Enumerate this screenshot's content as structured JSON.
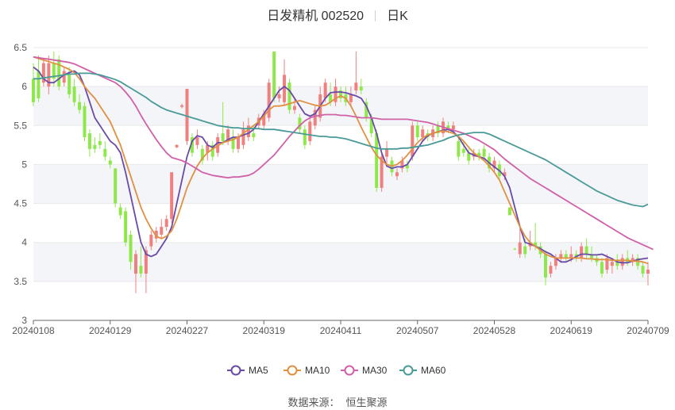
{
  "title": {
    "name": "日发精机 002520",
    "period": "日K"
  },
  "source": {
    "label": "数据来源：",
    "value": "恒生聚源"
  },
  "colors": {
    "up": "#f08080",
    "down": "#8fe84a",
    "MA5": "#6a4aa8",
    "MA10": "#e09040",
    "MA30": "#d060a8",
    "MA60": "#4a9a98",
    "grid": "#e8e8e8",
    "band": "#f4f5f9",
    "axis": "#555555"
  },
  "chart_data": {
    "type": "candlestick",
    "ylim": [
      3,
      6.5
    ],
    "yticks": [
      "3",
      "3.5",
      "4",
      "4.5",
      "5",
      "5.5",
      "6",
      "6.5"
    ],
    "xticks": [
      "20240108",
      "20240129",
      "20240227",
      "20240319",
      "20240411",
      "20240507",
      "20240528",
      "20240619",
      "20240709"
    ],
    "xtick_index": [
      0,
      15,
      30,
      45,
      60,
      75,
      90,
      105,
      120
    ],
    "candles": [
      {
        "o": 6.1,
        "c": 5.8,
        "h": 6.3,
        "l": 5.75
      },
      {
        "o": 6.2,
        "c": 5.85,
        "h": 6.4,
        "l": 5.8
      },
      {
        "o": 6.05,
        "c": 6.3,
        "h": 6.35,
        "l": 6.0
      },
      {
        "o": 6.0,
        "c": 6.3,
        "h": 6.4,
        "l": 5.9
      },
      {
        "o": 6.3,
        "c": 6.1,
        "h": 6.45,
        "l": 6.0
      },
      {
        "o": 6.35,
        "c": 6.0,
        "h": 6.4,
        "l": 5.95
      },
      {
        "o": 6.05,
        "c": 6.2,
        "h": 6.25,
        "l": 6.0
      },
      {
        "o": 6.15,
        "c": 5.9,
        "h": 6.25,
        "l": 5.85
      },
      {
        "o": 6.0,
        "c": 5.8,
        "h": 6.1,
        "l": 5.75
      },
      {
        "o": 5.8,
        "c": 5.7,
        "h": 5.9,
        "l": 5.65
      },
      {
        "o": 5.75,
        "c": 5.35,
        "h": 5.8,
        "l": 5.3
      },
      {
        "o": 5.4,
        "c": 5.2,
        "h": 5.45,
        "l": 5.1
      },
      {
        "o": 5.25,
        "c": 5.2,
        "h": 5.35,
        "l": 5.15
      },
      {
        "o": 5.3,
        "c": 5.25,
        "h": 5.4,
        "l": 5.2
      },
      {
        "o": 5.2,
        "c": 5.1,
        "h": 5.3,
        "l": 5.05
      },
      {
        "o": 5.05,
        "c": 5.0,
        "h": 5.1,
        "l": 4.95
      },
      {
        "o": 4.95,
        "c": 4.5,
        "h": 4.95,
        "l": 4.45
      },
      {
        "o": 4.45,
        "c": 4.35,
        "h": 4.5,
        "l": 4.3
      },
      {
        "o": 4.4,
        "c": 4.0,
        "h": 4.45,
        "l": 3.95
      },
      {
        "o": 4.1,
        "c": 3.75,
        "h": 4.15,
        "l": 3.65
      },
      {
        "o": 3.6,
        "c": 3.85,
        "h": 3.9,
        "l": 3.35
      },
      {
        "o": 3.7,
        "c": 3.6,
        "h": 3.95,
        "l": 3.55
      },
      {
        "o": 3.6,
        "c": 3.9,
        "h": 3.95,
        "l": 3.35
      },
      {
        "o": 3.95,
        "c": 4.1,
        "h": 4.15,
        "l": 3.9
      },
      {
        "o": 4.05,
        "c": 4.15,
        "h": 4.2,
        "l": 4.0
      },
      {
        "o": 4.1,
        "c": 4.2,
        "h": 4.3,
        "l": 4.05
      },
      {
        "o": 4.2,
        "c": 4.3,
        "h": 4.35,
        "l": 4.15
      },
      {
        "o": 4.3,
        "c": 4.9,
        "h": 4.9,
        "l": 4.25
      },
      {
        "o": 5.22,
        "c": 5.25,
        "h": 5.26,
        "l": 5.21
      },
      {
        "o": 5.74,
        "c": 5.76,
        "h": 5.78,
        "l": 5.72
      },
      {
        "o": 5.3,
        "c": 5.97,
        "h": 5.97,
        "l": 5.25
      },
      {
        "o": 5.35,
        "c": 5.15,
        "h": 5.4,
        "l": 5.1
      },
      {
        "o": 5.25,
        "c": 5.35,
        "h": 5.45,
        "l": 5.2
      },
      {
        "o": 5.2,
        "c": 5.05,
        "h": 5.25,
        "l": 5.0
      },
      {
        "o": 5.15,
        "c": 5.25,
        "h": 5.3,
        "l": 5.05
      },
      {
        "o": 5.25,
        "c": 5.1,
        "h": 5.3,
        "l": 5.05
      },
      {
        "o": 5.15,
        "c": 5.35,
        "h": 5.4,
        "l": 5.1
      },
      {
        "o": 5.4,
        "c": 5.3,
        "h": 5.8,
        "l": 5.25
      },
      {
        "o": 5.3,
        "c": 5.45,
        "h": 5.5,
        "l": 5.25
      },
      {
        "o": 5.35,
        "c": 5.2,
        "h": 5.45,
        "l": 5.15
      },
      {
        "o": 5.2,
        "c": 5.35,
        "h": 5.4,
        "l": 5.15
      },
      {
        "o": 5.25,
        "c": 5.45,
        "h": 5.55,
        "l": 5.2
      },
      {
        "o": 5.35,
        "c": 5.5,
        "h": 5.6,
        "l": 5.3
      },
      {
        "o": 5.4,
        "c": 5.35,
        "h": 5.5,
        "l": 5.3
      },
      {
        "o": 5.5,
        "c": 5.6,
        "h": 5.65,
        "l": 5.45
      },
      {
        "o": 5.5,
        "c": 5.65,
        "h": 5.7,
        "l": 5.45
      },
      {
        "o": 5.6,
        "c": 6.05,
        "h": 6.1,
        "l": 5.55
      },
      {
        "o": 6.45,
        "c": 5.85,
        "h": 6.45,
        "l": 5.8
      },
      {
        "o": 5.85,
        "c": 5.9,
        "h": 6.0,
        "l": 5.8
      },
      {
        "o": 5.8,
        "c": 6.15,
        "h": 6.35,
        "l": 5.75
      },
      {
        "o": 6.05,
        "c": 5.7,
        "h": 6.1,
        "l": 5.65
      },
      {
        "o": 5.7,
        "c": 5.75,
        "h": 5.85,
        "l": 5.65
      },
      {
        "o": 5.6,
        "c": 5.45,
        "h": 5.65,
        "l": 5.4
      },
      {
        "o": 5.45,
        "c": 5.25,
        "h": 5.5,
        "l": 5.2
      },
      {
        "o": 5.3,
        "c": 5.55,
        "h": 5.6,
        "l": 5.25
      },
      {
        "o": 5.5,
        "c": 5.7,
        "h": 5.75,
        "l": 5.45
      },
      {
        "o": 5.6,
        "c": 5.9,
        "h": 6.0,
        "l": 5.55
      },
      {
        "o": 5.85,
        "c": 6.05,
        "h": 6.1,
        "l": 5.8
      },
      {
        "o": 5.9,
        "c": 5.8,
        "h": 6.05,
        "l": 5.75
      },
      {
        "o": 5.8,
        "c": 6.0,
        "h": 6.1,
        "l": 5.75
      },
      {
        "o": 5.95,
        "c": 5.85,
        "h": 6.0,
        "l": 5.8
      },
      {
        "o": 5.9,
        "c": 5.8,
        "h": 6.0,
        "l": 5.75
      },
      {
        "o": 5.8,
        "c": 5.9,
        "h": 6.0,
        "l": 5.75
      },
      {
        "o": 5.95,
        "c": 6.05,
        "h": 6.45,
        "l": 5.9
      },
      {
        "o": 6.0,
        "c": 5.95,
        "h": 6.1,
        "l": 5.9
      },
      {
        "o": 5.8,
        "c": 5.6,
        "h": 5.85,
        "l": 5.55
      },
      {
        "o": 5.6,
        "c": 5.4,
        "h": 5.65,
        "l": 5.35
      },
      {
        "o": 5.4,
        "c": 4.7,
        "h": 5.45,
        "l": 4.65
      },
      {
        "o": 4.7,
        "c": 5.1,
        "h": 5.15,
        "l": 4.65
      },
      {
        "o": 5.1,
        "c": 5.2,
        "h": 5.3,
        "l": 5.0
      },
      {
        "o": 5.05,
        "c": 4.9,
        "h": 5.1,
        "l": 4.85
      },
      {
        "o": 4.85,
        "c": 4.9,
        "h": 4.95,
        "l": 4.8
      },
      {
        "o": 4.95,
        "c": 5.05,
        "h": 5.1,
        "l": 4.9
      },
      {
        "o": 5.0,
        "c": 4.95,
        "h": 5.05,
        "l": 4.9
      },
      {
        "o": 5.1,
        "c": 5.5,
        "h": 5.55,
        "l": 5.05
      },
      {
        "o": 5.5,
        "c": 5.35,
        "h": 5.55,
        "l": 5.3
      },
      {
        "o": 5.35,
        "c": 5.45,
        "h": 5.5,
        "l": 5.3
      },
      {
        "o": 5.4,
        "c": 5.35,
        "h": 5.45,
        "l": 5.3
      },
      {
        "o": 5.35,
        "c": 5.45,
        "h": 5.5,
        "l": 5.3
      },
      {
        "o": 5.5,
        "c": 5.4,
        "h": 5.55,
        "l": 5.35
      },
      {
        "o": 5.4,
        "c": 5.55,
        "h": 5.6,
        "l": 5.35
      },
      {
        "o": 5.5,
        "c": 5.45,
        "h": 5.55,
        "l": 5.4
      },
      {
        "o": 5.45,
        "c": 5.5,
        "h": 5.55,
        "l": 5.4
      },
      {
        "o": 5.3,
        "c": 5.1,
        "h": 5.35,
        "l": 5.05
      },
      {
        "o": 5.2,
        "c": 5.15,
        "h": 5.3,
        "l": 5.1
      },
      {
        "o": 5.15,
        "c": 5.05,
        "h": 5.2,
        "l": 5.0
      },
      {
        "o": 5.1,
        "c": 5.15,
        "h": 5.2,
        "l": 5.05
      },
      {
        "o": 5.15,
        "c": 5.1,
        "h": 5.2,
        "l": 5.05
      },
      {
        "o": 5.2,
        "c": 5.1,
        "h": 5.25,
        "l": 5.05
      },
      {
        "o": 5.1,
        "c": 4.95,
        "h": 5.15,
        "l": 4.9
      },
      {
        "o": 4.95,
        "c": 5.05,
        "h": 5.1,
        "l": 4.9
      },
      {
        "o": 5.0,
        "c": 4.85,
        "h": 5.05,
        "l": 4.8
      },
      {
        "o": 4.85,
        "c": 4.9,
        "h": 4.95,
        "l": 4.8
      },
      {
        "o": 4.45,
        "c": 4.35,
        "h": 4.45,
        "l": 4.35
      },
      {
        "o": 3.92,
        "c": 3.91,
        "h": 3.93,
        "l": 3.9
      },
      {
        "o": 3.85,
        "c": 4.0,
        "h": 4.2,
        "l": 3.8
      },
      {
        "o": 3.95,
        "c": 3.85,
        "h": 4.05,
        "l": 3.8
      },
      {
        "o": 3.95,
        "c": 4.0,
        "h": 4.15,
        "l": 3.9
      },
      {
        "o": 4.0,
        "c": 3.95,
        "h": 4.25,
        "l": 3.9
      },
      {
        "o": 3.95,
        "c": 3.85,
        "h": 4.0,
        "l": 3.8
      },
      {
        "o": 3.85,
        "c": 3.55,
        "h": 3.9,
        "l": 3.45
      },
      {
        "o": 3.6,
        "c": 3.7,
        "h": 3.75,
        "l": 3.55
      },
      {
        "o": 3.7,
        "c": 3.8,
        "h": 3.85,
        "l": 3.65
      },
      {
        "o": 3.8,
        "c": 3.85,
        "h": 3.9,
        "l": 3.75
      },
      {
        "o": 3.85,
        "c": 3.8,
        "h": 3.9,
        "l": 3.75
      },
      {
        "o": 3.8,
        "c": 3.85,
        "h": 3.95,
        "l": 3.75
      },
      {
        "o": 3.85,
        "c": 3.8,
        "h": 3.9,
        "l": 3.75
      },
      {
        "o": 3.8,
        "c": 3.95,
        "h": 4.0,
        "l": 3.75
      },
      {
        "o": 3.95,
        "c": 3.85,
        "h": 4.05,
        "l": 3.8
      },
      {
        "o": 3.85,
        "c": 3.8,
        "h": 3.95,
        "l": 3.75
      },
      {
        "o": 3.8,
        "c": 3.75,
        "h": 3.85,
        "l": 3.7
      },
      {
        "o": 3.75,
        "c": 3.6,
        "h": 3.8,
        "l": 3.55
      },
      {
        "o": 3.65,
        "c": 3.8,
        "h": 3.85,
        "l": 3.6
      },
      {
        "o": 3.7,
        "c": 3.75,
        "h": 3.8,
        "l": 3.6
      },
      {
        "o": 3.75,
        "c": 3.7,
        "h": 3.85,
        "l": 3.65
      },
      {
        "o": 3.7,
        "c": 3.8,
        "h": 3.85,
        "l": 3.65
      },
      {
        "o": 3.8,
        "c": 3.75,
        "h": 3.9,
        "l": 3.7
      },
      {
        "o": 3.75,
        "c": 3.8,
        "h": 3.85,
        "l": 3.7
      },
      {
        "o": 3.8,
        "c": 3.7,
        "h": 3.85,
        "l": 3.65
      },
      {
        "o": 3.7,
        "c": 3.6,
        "h": 3.75,
        "l": 3.55
      },
      {
        "o": 3.6,
        "c": 3.65,
        "h": 3.75,
        "l": 3.45
      }
    ],
    "series": [
      {
        "name": "MA5",
        "values": [
          6.25,
          6.2,
          6.1,
          6.05,
          6.05,
          6.1,
          6.15,
          6.18,
          6.2,
          6.15,
          6.0,
          5.8,
          5.6,
          5.5,
          5.4,
          5.3,
          5.25,
          5.15,
          4.9,
          4.6,
          4.3,
          4.0,
          3.85,
          3.82,
          3.85,
          3.95,
          4.05,
          4.2,
          4.5,
          4.8,
          5.1,
          5.3,
          5.37,
          5.35,
          5.25,
          5.22,
          5.28,
          5.28,
          5.32,
          5.35,
          5.35,
          5.38,
          5.4,
          5.45,
          5.55,
          5.65,
          5.75,
          5.85,
          5.95,
          6.0,
          5.95,
          5.85,
          5.75,
          5.65,
          5.62,
          5.65,
          5.75,
          5.85,
          5.92,
          5.93,
          5.93,
          5.92,
          5.9,
          5.88,
          5.85,
          5.75,
          5.6,
          5.4,
          5.15,
          4.98,
          4.95,
          4.97,
          4.97,
          5.0,
          5.1,
          5.2,
          5.3,
          5.37,
          5.4,
          5.42,
          5.44,
          5.45,
          5.42,
          5.35,
          5.25,
          5.15,
          5.12,
          5.1,
          5.08,
          5.02,
          4.97,
          4.92,
          4.85,
          4.7,
          4.45,
          4.2,
          4.0,
          3.98,
          3.95,
          3.92,
          3.88,
          3.85,
          3.8,
          3.75,
          3.75,
          3.78,
          3.82,
          3.85,
          3.85,
          3.84,
          3.84,
          3.85,
          3.82,
          3.79,
          3.75,
          3.74,
          3.74,
          3.76,
          3.78,
          3.79,
          3.8
        ]
      },
      {
        "name": "MA10",
        "values": [
          6.38,
          6.36,
          6.34,
          6.32,
          6.3,
          6.28,
          6.25,
          6.22,
          6.18,
          6.1,
          6.0,
          5.92,
          5.85,
          5.75,
          5.65,
          5.55,
          5.4,
          5.25,
          5.05,
          4.85,
          4.65,
          4.45,
          4.3,
          4.18,
          4.08,
          4.05,
          4.08,
          4.15,
          4.3,
          4.5,
          4.7,
          4.85,
          4.98,
          5.08,
          5.15,
          5.2,
          5.24,
          5.28,
          5.3,
          5.32,
          5.35,
          5.4,
          5.45,
          5.5,
          5.55,
          5.62,
          5.7,
          5.75,
          5.75,
          5.76,
          5.78,
          5.8,
          5.82,
          5.8,
          5.78,
          5.76,
          5.75,
          5.76,
          5.8,
          5.85,
          5.88,
          5.85,
          5.75,
          5.62,
          5.48,
          5.35,
          5.22,
          5.12,
          5.05,
          5.0,
          4.98,
          5.0,
          5.05,
          5.12,
          5.2,
          5.28,
          5.34,
          5.38,
          5.4,
          5.42,
          5.43,
          5.42,
          5.4,
          5.36,
          5.3,
          5.22,
          5.15,
          5.1,
          5.05,
          4.98,
          4.9,
          4.8,
          4.65,
          4.5,
          4.35,
          4.2,
          4.08,
          4.0,
          3.95,
          3.9,
          3.85,
          3.82,
          3.8,
          3.8,
          3.8,
          3.8,
          3.8,
          3.8,
          3.79,
          3.79,
          3.78,
          3.78,
          3.78,
          3.77,
          3.77,
          3.77,
          3.77,
          3.76,
          3.76,
          3.75,
          3.73
        ]
      },
      {
        "name": "MA30",
        "values": [
          6.38,
          6.37,
          6.36,
          6.35,
          6.34,
          6.33,
          6.32,
          6.31,
          6.29,
          6.26,
          6.23,
          6.2,
          6.17,
          6.14,
          6.11,
          6.08,
          6.05,
          6.0,
          5.93,
          5.85,
          5.75,
          5.63,
          5.52,
          5.42,
          5.32,
          5.23,
          5.15,
          5.09,
          5.07,
          5.05,
          5.02,
          4.98,
          4.94,
          4.9,
          4.88,
          4.86,
          4.85,
          4.84,
          4.83,
          4.84,
          4.84,
          4.85,
          4.86,
          4.89,
          4.94,
          5.0,
          5.06,
          5.12,
          5.2,
          5.28,
          5.36,
          5.43,
          5.5,
          5.56,
          5.6,
          5.62,
          5.63,
          5.64,
          5.64,
          5.64,
          5.63,
          5.63,
          5.62,
          5.61,
          5.6,
          5.6,
          5.6,
          5.59,
          5.58,
          5.58,
          5.58,
          5.58,
          5.58,
          5.58,
          5.57,
          5.56,
          5.55,
          5.54,
          5.52,
          5.5,
          5.48,
          5.46,
          5.44,
          5.42,
          5.4,
          5.37,
          5.34,
          5.31,
          5.27,
          5.23,
          5.19,
          5.13,
          5.07,
          5.02,
          4.97,
          4.92,
          4.87,
          4.82,
          4.78,
          4.74,
          4.7,
          4.66,
          4.62,
          4.58,
          4.54,
          4.5,
          4.46,
          4.42,
          4.38,
          4.34,
          4.3,
          4.26,
          4.22,
          4.18,
          4.14,
          4.1,
          4.06,
          4.03,
          4.0,
          3.97,
          3.94,
          3.91
        ]
      },
      {
        "name": "MA60",
        "values": [
          6.1,
          6.1,
          6.11,
          6.12,
          6.13,
          6.14,
          6.15,
          6.16,
          6.16,
          6.17,
          6.17,
          6.17,
          6.16,
          6.15,
          6.13,
          6.11,
          6.09,
          6.06,
          6.02,
          5.98,
          5.94,
          5.9,
          5.86,
          5.81,
          5.77,
          5.73,
          5.7,
          5.68,
          5.66,
          5.64,
          5.62,
          5.6,
          5.58,
          5.56,
          5.54,
          5.52,
          5.5,
          5.49,
          5.48,
          5.47,
          5.47,
          5.46,
          5.46,
          5.46,
          5.46,
          5.45,
          5.45,
          5.45,
          5.44,
          5.43,
          5.42,
          5.41,
          5.4,
          5.39,
          5.38,
          5.37,
          5.36,
          5.36,
          5.35,
          5.35,
          5.34,
          5.33,
          5.31,
          5.29,
          5.27,
          5.25,
          5.23,
          5.21,
          5.2,
          5.2,
          5.2,
          5.2,
          5.21,
          5.21,
          5.22,
          5.23,
          5.24,
          5.25,
          5.27,
          5.29,
          5.31,
          5.34,
          5.36,
          5.38,
          5.39,
          5.4,
          5.41,
          5.41,
          5.41,
          5.39,
          5.36,
          5.33,
          5.3,
          5.27,
          5.24,
          5.21,
          5.18,
          5.15,
          5.12,
          5.09,
          5.06,
          5.02,
          4.98,
          4.94,
          4.9,
          4.86,
          4.82,
          4.78,
          4.74,
          4.7,
          4.66,
          4.63,
          4.6,
          4.57,
          4.54,
          4.52,
          4.5,
          4.48,
          4.47,
          4.46,
          4.49
        ]
      }
    ]
  }
}
